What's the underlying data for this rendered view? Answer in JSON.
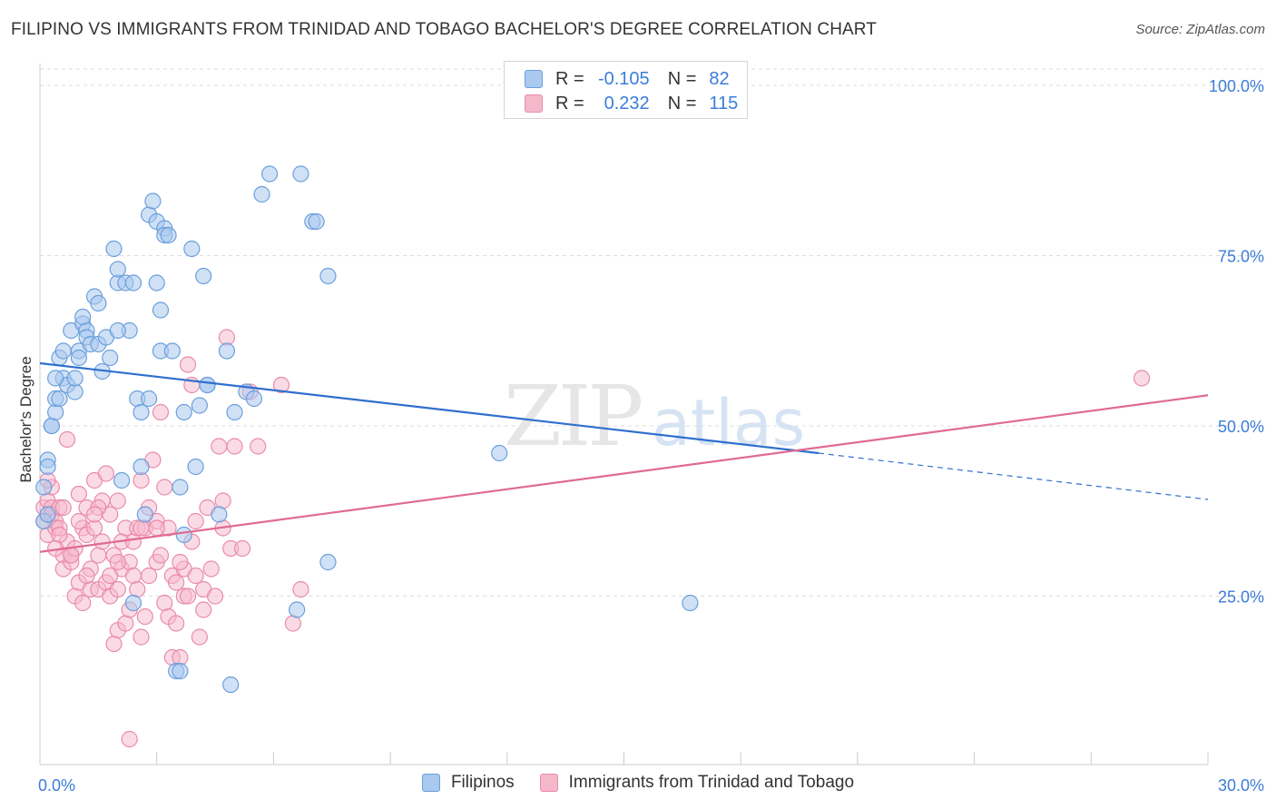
{
  "title": "FILIPINO VS IMMIGRANTS FROM TRINIDAD AND TOBAGO BACHELOR'S DEGREE CORRELATION CHART",
  "source": "Source: ZipAtlas.com",
  "watermark": {
    "zip": "ZIP",
    "atlas": "atlas"
  },
  "legend": {
    "rows": [
      {
        "r_label": "R =",
        "r_value": "-0.105",
        "n_label": "N =",
        "n_value": "82"
      },
      {
        "r_label": "R =",
        "r_value": "0.232",
        "n_label": "N =",
        "n_value": "115"
      }
    ]
  },
  "colors": {
    "blue_fill": "#a9c9ef",
    "blue_stroke": "#6a9fdc",
    "blue_line": "#2f6fcf",
    "pink_fill": "#f5b8cb",
    "pink_stroke": "#e98aaa",
    "pink_line": "#e06a93",
    "axis_text": "#3b7dd8",
    "grid": "#dddddd"
  },
  "chart_data": {
    "type": "scatter",
    "title": "FILIPINO VS IMMIGRANTS FROM TRINIDAD AND TOBAGO BACHELOR'S DEGREE CORRELATION CHART",
    "xlabel": "",
    "ylabel": "Bachelor's Degree",
    "xlim": [
      0,
      30
    ],
    "ylim": [
      0,
      105
    ],
    "x_tick_labels": [
      "0.0%",
      "30.0%"
    ],
    "y_ticks": [
      25,
      50,
      75,
      100
    ],
    "y_tick_labels": [
      "25.0%",
      "50.0%",
      "75.0%",
      "100.0%"
    ],
    "series": [
      {
        "name": "Filipinos",
        "r": -0.105,
        "n": 82,
        "trend": {
          "x0": 0,
          "y0": 59.2,
          "x1": 20,
          "y1": 46.0,
          "dash_x1": 30,
          "dash_y1": 39.2
        },
        "points": [
          [
            0.1,
            36
          ],
          [
            0.2,
            45
          ],
          [
            0.2,
            44
          ],
          [
            0.3,
            50
          ],
          [
            0.3,
            50
          ],
          [
            0.4,
            52
          ],
          [
            0.4,
            54
          ],
          [
            0.5,
            54
          ],
          [
            0.5,
            60
          ],
          [
            0.6,
            57
          ],
          [
            0.6,
            61
          ],
          [
            0.7,
            56
          ],
          [
            0.8,
            64
          ],
          [
            0.9,
            55
          ],
          [
            0.9,
            57
          ],
          [
            1.0,
            61
          ],
          [
            1.1,
            65
          ],
          [
            1.2,
            64
          ],
          [
            1.2,
            63
          ],
          [
            1.3,
            62
          ],
          [
            1.4,
            69
          ],
          [
            1.5,
            68
          ],
          [
            1.5,
            62
          ],
          [
            1.6,
            58
          ],
          [
            1.7,
            63
          ],
          [
            1.8,
            60
          ],
          [
            1.9,
            76
          ],
          [
            2.0,
            71
          ],
          [
            2.0,
            73
          ],
          [
            2.1,
            42
          ],
          [
            2.2,
            71
          ],
          [
            2.3,
            64
          ],
          [
            2.4,
            71
          ],
          [
            2.5,
            54
          ],
          [
            2.6,
            52
          ],
          [
            2.6,
            44
          ],
          [
            2.7,
            37
          ],
          [
            2.8,
            54
          ],
          [
            2.8,
            81
          ],
          [
            2.9,
            83
          ],
          [
            3.0,
            71
          ],
          [
            3.0,
            80
          ],
          [
            3.1,
            67
          ],
          [
            3.1,
            61
          ],
          [
            3.2,
            79
          ],
          [
            3.2,
            78
          ],
          [
            3.3,
            78
          ],
          [
            3.4,
            61
          ],
          [
            3.5,
            14
          ],
          [
            3.6,
            41
          ],
          [
            3.7,
            34
          ],
          [
            3.7,
            52
          ],
          [
            3.9,
            76
          ],
          [
            4.0,
            44
          ],
          [
            4.1,
            53
          ],
          [
            4.2,
            72
          ],
          [
            4.3,
            56
          ],
          [
            4.3,
            56
          ],
          [
            4.6,
            37
          ],
          [
            4.8,
            61
          ],
          [
            4.9,
            12
          ],
          [
            5.0,
            52
          ],
          [
            5.3,
            55
          ],
          [
            5.5,
            54
          ],
          [
            5.7,
            84
          ],
          [
            5.9,
            87
          ],
          [
            6.6,
            23
          ],
          [
            6.7,
            87
          ],
          [
            7.0,
            80
          ],
          [
            7.1,
            80
          ],
          [
            7.4,
            72
          ],
          [
            7.4,
            30
          ],
          [
            11.8,
            46
          ],
          [
            16.7,
            24
          ],
          [
            2.4,
            24
          ],
          [
            0.1,
            41
          ],
          [
            0.2,
            37
          ],
          [
            1.1,
            66
          ],
          [
            2.0,
            64
          ],
          [
            0.4,
            57
          ],
          [
            1.0,
            60
          ],
          [
            3.6,
            14
          ]
        ]
      },
      {
        "name": "Immigrants from Trinidad and Tobago",
        "r": 0.232,
        "n": 115,
        "trend": {
          "x0": 0,
          "y0": 31.5,
          "x1": 30,
          "y1": 54.5
        },
        "points": [
          [
            0.1,
            38
          ],
          [
            0.1,
            36
          ],
          [
            0.2,
            37
          ],
          [
            0.2,
            39
          ],
          [
            0.2,
            34
          ],
          [
            0.3,
            41
          ],
          [
            0.3,
            38
          ],
          [
            0.3,
            37
          ],
          [
            0.4,
            36
          ],
          [
            0.4,
            35
          ],
          [
            0.5,
            38
          ],
          [
            0.5,
            35
          ],
          [
            0.6,
            31
          ],
          [
            0.6,
            29
          ],
          [
            0.7,
            33
          ],
          [
            0.7,
            48
          ],
          [
            0.8,
            30
          ],
          [
            0.8,
            31
          ],
          [
            0.9,
            32
          ],
          [
            0.9,
            25
          ],
          [
            1.0,
            40
          ],
          [
            1.0,
            27
          ],
          [
            1.1,
            35
          ],
          [
            1.1,
            24
          ],
          [
            1.2,
            38
          ],
          [
            1.2,
            34
          ],
          [
            1.3,
            26
          ],
          [
            1.3,
            29
          ],
          [
            1.4,
            42
          ],
          [
            1.4,
            35
          ],
          [
            1.5,
            31
          ],
          [
            1.5,
            26
          ],
          [
            1.6,
            39
          ],
          [
            1.6,
            33
          ],
          [
            1.7,
            43
          ],
          [
            1.7,
            27
          ],
          [
            1.8,
            37
          ],
          [
            1.8,
            25
          ],
          [
            1.9,
            31
          ],
          [
            1.9,
            18
          ],
          [
            2.0,
            39
          ],
          [
            2.0,
            26
          ],
          [
            2.0,
            20
          ],
          [
            2.1,
            33
          ],
          [
            2.1,
            29
          ],
          [
            2.2,
            35
          ],
          [
            2.2,
            21
          ],
          [
            2.3,
            30
          ],
          [
            2.3,
            23
          ],
          [
            2.4,
            28
          ],
          [
            2.4,
            33
          ],
          [
            2.5,
            35
          ],
          [
            2.5,
            26
          ],
          [
            2.6,
            42
          ],
          [
            2.6,
            19
          ],
          [
            2.7,
            35
          ],
          [
            2.7,
            22
          ],
          [
            2.8,
            38
          ],
          [
            2.8,
            28
          ],
          [
            2.9,
            45
          ],
          [
            3.0,
            36
          ],
          [
            3.0,
            30
          ],
          [
            3.1,
            52
          ],
          [
            3.1,
            31
          ],
          [
            3.2,
            41
          ],
          [
            3.2,
            24
          ],
          [
            3.3,
            35
          ],
          [
            3.3,
            22
          ],
          [
            3.4,
            28
          ],
          [
            3.4,
            16
          ],
          [
            3.5,
            27
          ],
          [
            3.5,
            21
          ],
          [
            3.6,
            16
          ],
          [
            3.7,
            29
          ],
          [
            3.7,
            25
          ],
          [
            3.8,
            59
          ],
          [
            3.8,
            25
          ],
          [
            3.9,
            33
          ],
          [
            3.9,
            56
          ],
          [
            4.0,
            36
          ],
          [
            4.1,
            19
          ],
          [
            4.2,
            26
          ],
          [
            4.2,
            23
          ],
          [
            4.3,
            38
          ],
          [
            4.4,
            29
          ],
          [
            4.5,
            25
          ],
          [
            4.6,
            47
          ],
          [
            4.7,
            39
          ],
          [
            4.7,
            35
          ],
          [
            4.8,
            63
          ],
          [
            4.9,
            32
          ],
          [
            5.0,
            47
          ],
          [
            5.2,
            32
          ],
          [
            5.4,
            55
          ],
          [
            5.6,
            47
          ],
          [
            6.2,
            56
          ],
          [
            6.5,
            21
          ],
          [
            6.7,
            26
          ],
          [
            1.0,
            36
          ],
          [
            0.5,
            34
          ],
          [
            1.5,
            38
          ],
          [
            2.3,
            4
          ],
          [
            28.3,
            57
          ],
          [
            0.2,
            42
          ],
          [
            0.8,
            31
          ],
          [
            1.2,
            28
          ],
          [
            0.4,
            32
          ],
          [
            2.0,
            30
          ],
          [
            3.0,
            35
          ],
          [
            4.0,
            28
          ],
          [
            1.8,
            28
          ],
          [
            2.6,
            35
          ],
          [
            0.6,
            38
          ],
          [
            1.4,
            37
          ],
          [
            3.6,
            30
          ]
        ]
      }
    ]
  }
}
